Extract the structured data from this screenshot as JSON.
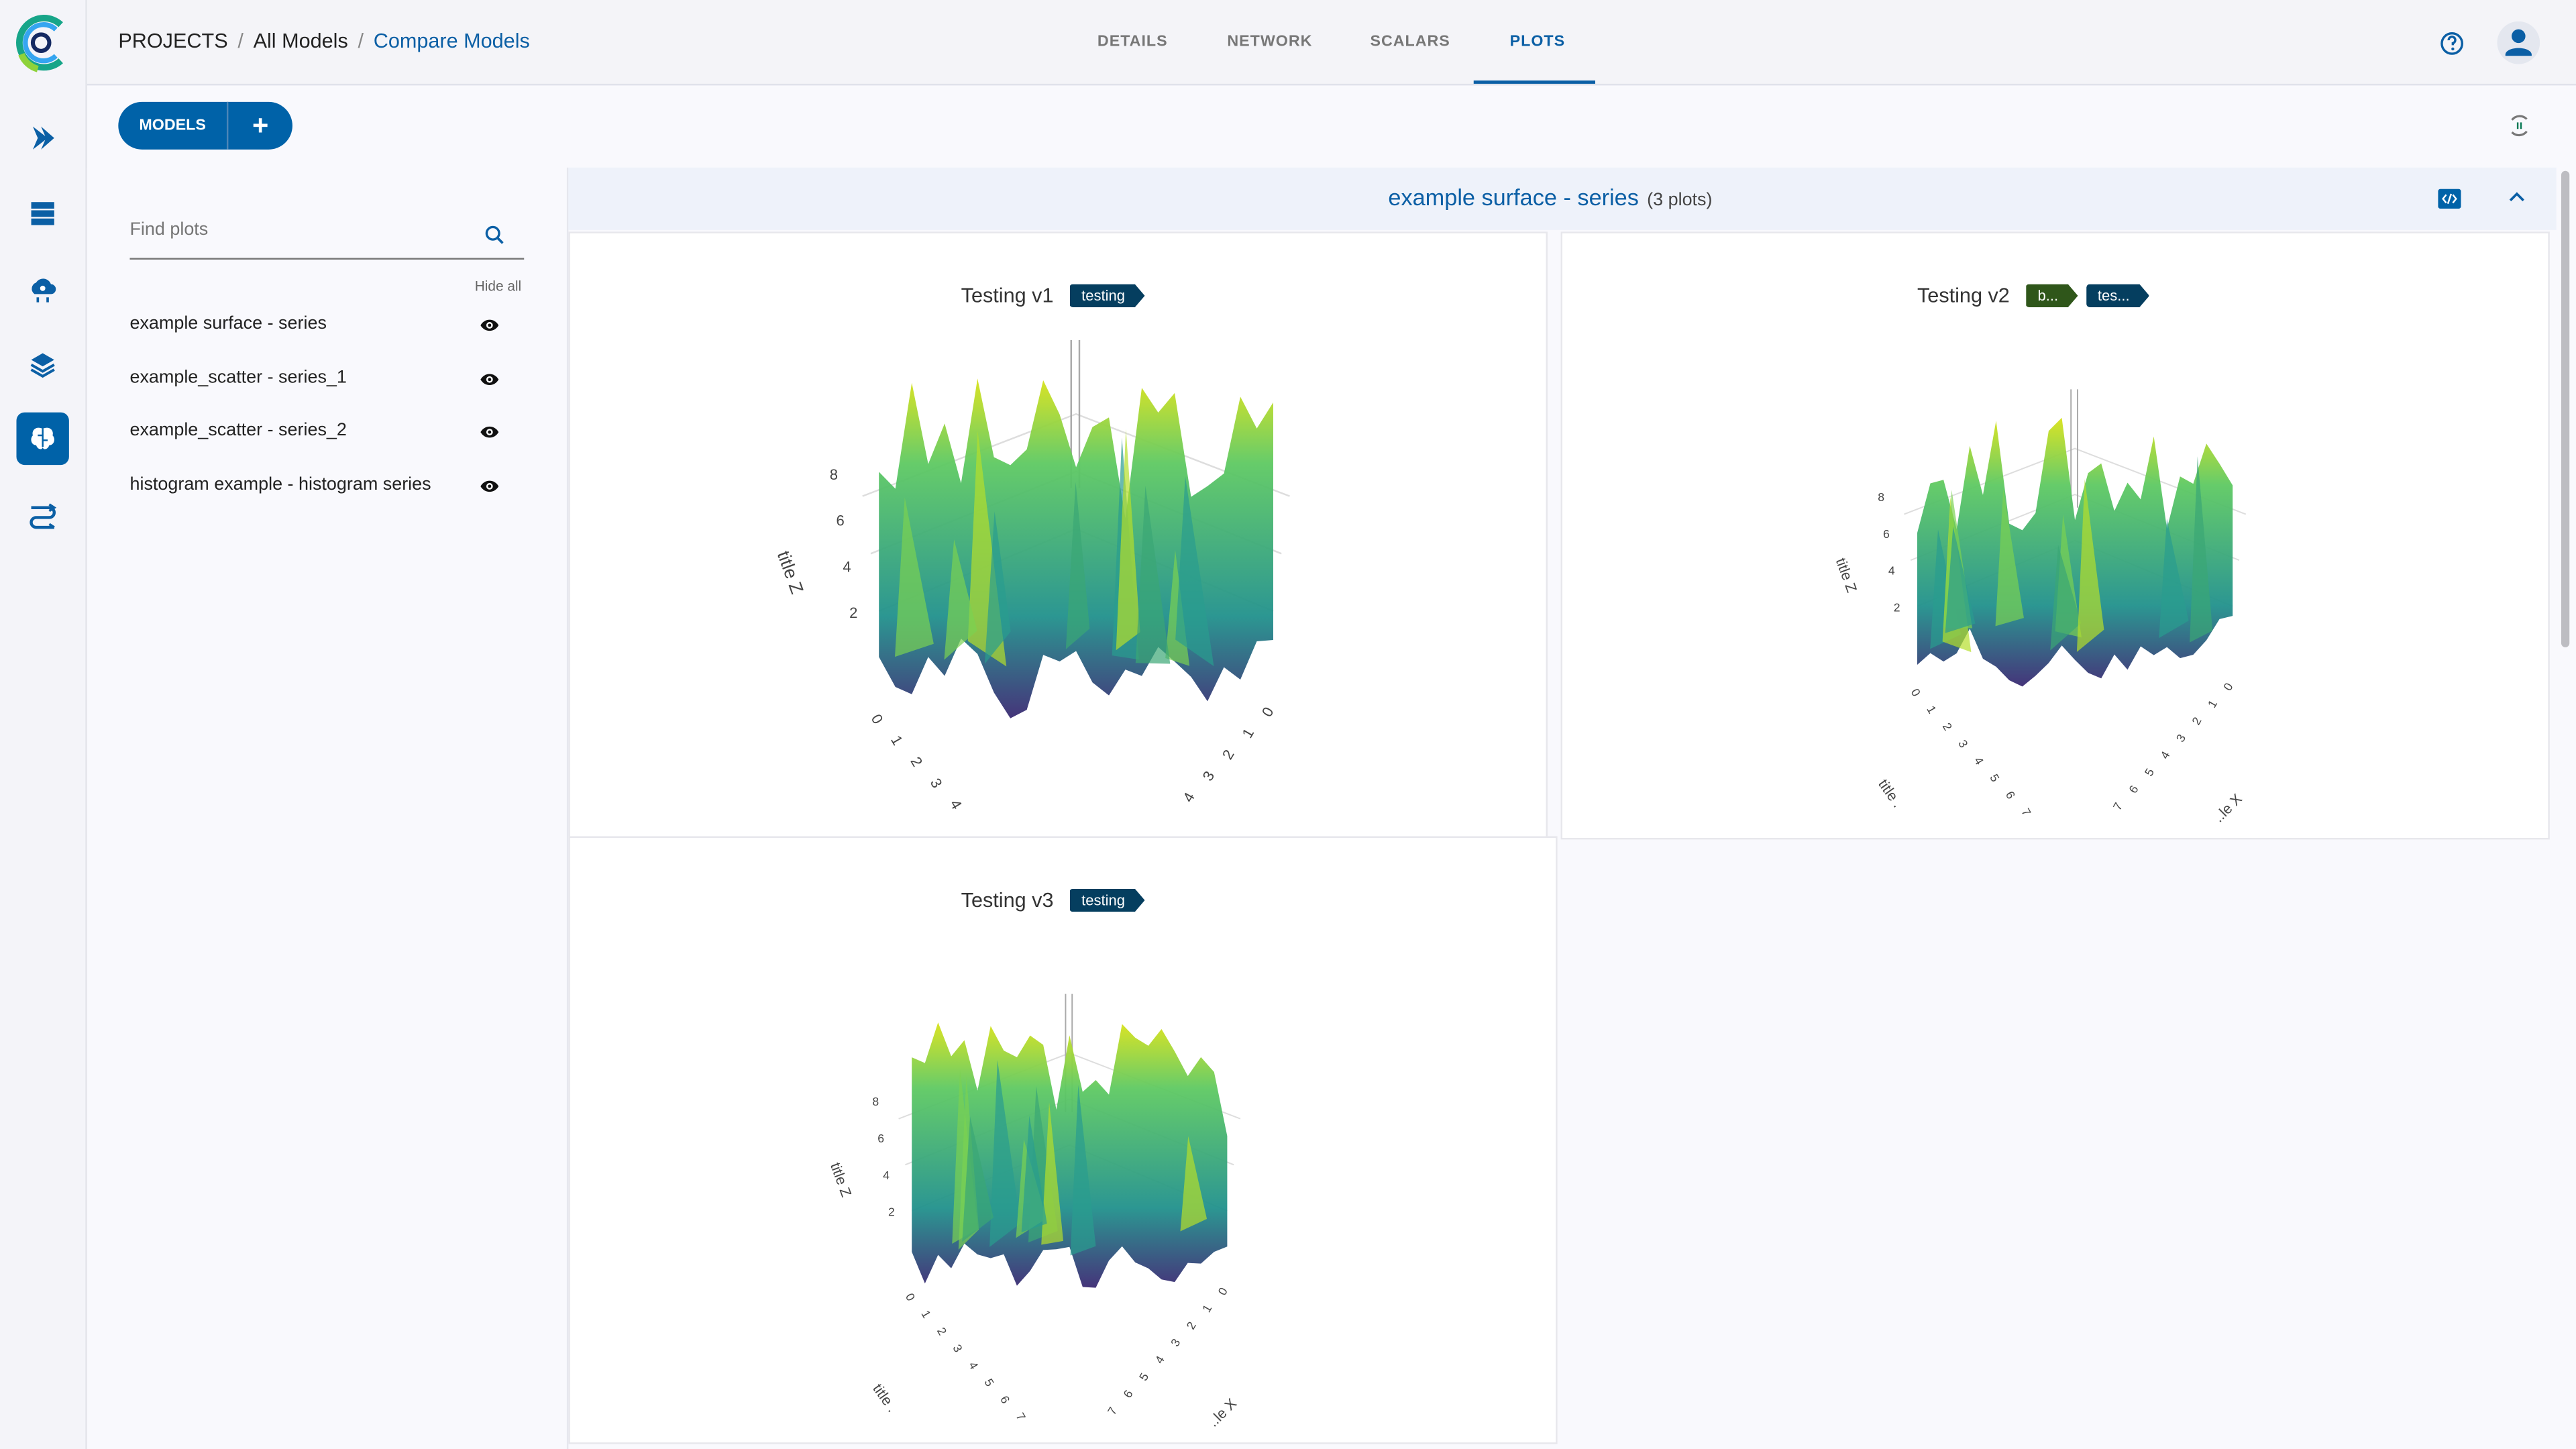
{
  "breadcrumb": {
    "projects": "PROJECTS",
    "all_models": "All Models",
    "current": "Compare Models",
    "separator": "/"
  },
  "tabs": [
    {
      "label": "DETAILS"
    },
    {
      "label": "NETWORK"
    },
    {
      "label": "SCALARS"
    },
    {
      "label": "PLOTS",
      "active": true
    }
  ],
  "toolbar": {
    "models_label": "MODELS",
    "add_label": "+"
  },
  "left_panel": {
    "search_placeholder": "Find plots",
    "hide_all": "Hide all",
    "items": [
      {
        "label": "example surface - series",
        "visible": true
      },
      {
        "label": "example_scatter - series_1",
        "visible": true
      },
      {
        "label": "example_scatter - series_2",
        "visible": true
      },
      {
        "label": "histogram example - histogram series",
        "visible": true
      }
    ]
  },
  "section": {
    "title": "example surface - series",
    "count": "(3 plots)"
  },
  "plots": [
    {
      "title": "Testing v1",
      "tags": [
        {
          "label": "testing",
          "color": "#053e5f"
        }
      ],
      "z_title": "title Z",
      "z_ticks": [
        "8",
        "6",
        "4",
        "2"
      ],
      "y_ticks": [
        "0",
        "1",
        "2",
        "3",
        "4"
      ],
      "x_ticks": [
        "0",
        "1",
        "2",
        "3",
        "4"
      ],
      "x_title": "",
      "y_title": ""
    },
    {
      "title": "Testing v2",
      "tags": [
        {
          "label": "b...",
          "color": "#2f561a"
        },
        {
          "label": "tes...",
          "color": "#053e5f"
        }
      ],
      "z_title": "title Z",
      "z_ticks": [
        "8",
        "6",
        "4",
        "2"
      ],
      "y_ticks": [
        "0",
        "1",
        "2",
        "3",
        "4",
        "5",
        "6",
        "7"
      ],
      "x_ticks": [
        "0",
        "1",
        "2",
        "3",
        "4",
        "5",
        "6",
        "7"
      ],
      "y_title": "title .",
      "x_title": "..le X"
    },
    {
      "title": "Testing v3",
      "tags": [
        {
          "label": "testing",
          "color": "#053e5f"
        }
      ],
      "z_title": "title Z",
      "z_ticks": [
        "8",
        "6",
        "4",
        "2"
      ],
      "y_ticks": [
        "0",
        "1",
        "2",
        "3",
        "4",
        "5",
        "6",
        "7"
      ],
      "x_ticks": [
        "0",
        "1",
        "2",
        "3",
        "4",
        "5",
        "6",
        "7"
      ],
      "y_title": "title .",
      "x_title": "..le X"
    }
  ],
  "colors": {
    "accent": "#0062a8",
    "link": "#0b5fa5",
    "surface_low": "#3b2a73",
    "surface_mid": "#21918c",
    "surface_high": "#d8e219"
  },
  "icons": {
    "logo": "clearml-logo",
    "nav": [
      "pipelines-icon",
      "datasets-icon",
      "cloud-gear-icon",
      "layers-icon",
      "brain-icon",
      "reports-icon"
    ]
  }
}
